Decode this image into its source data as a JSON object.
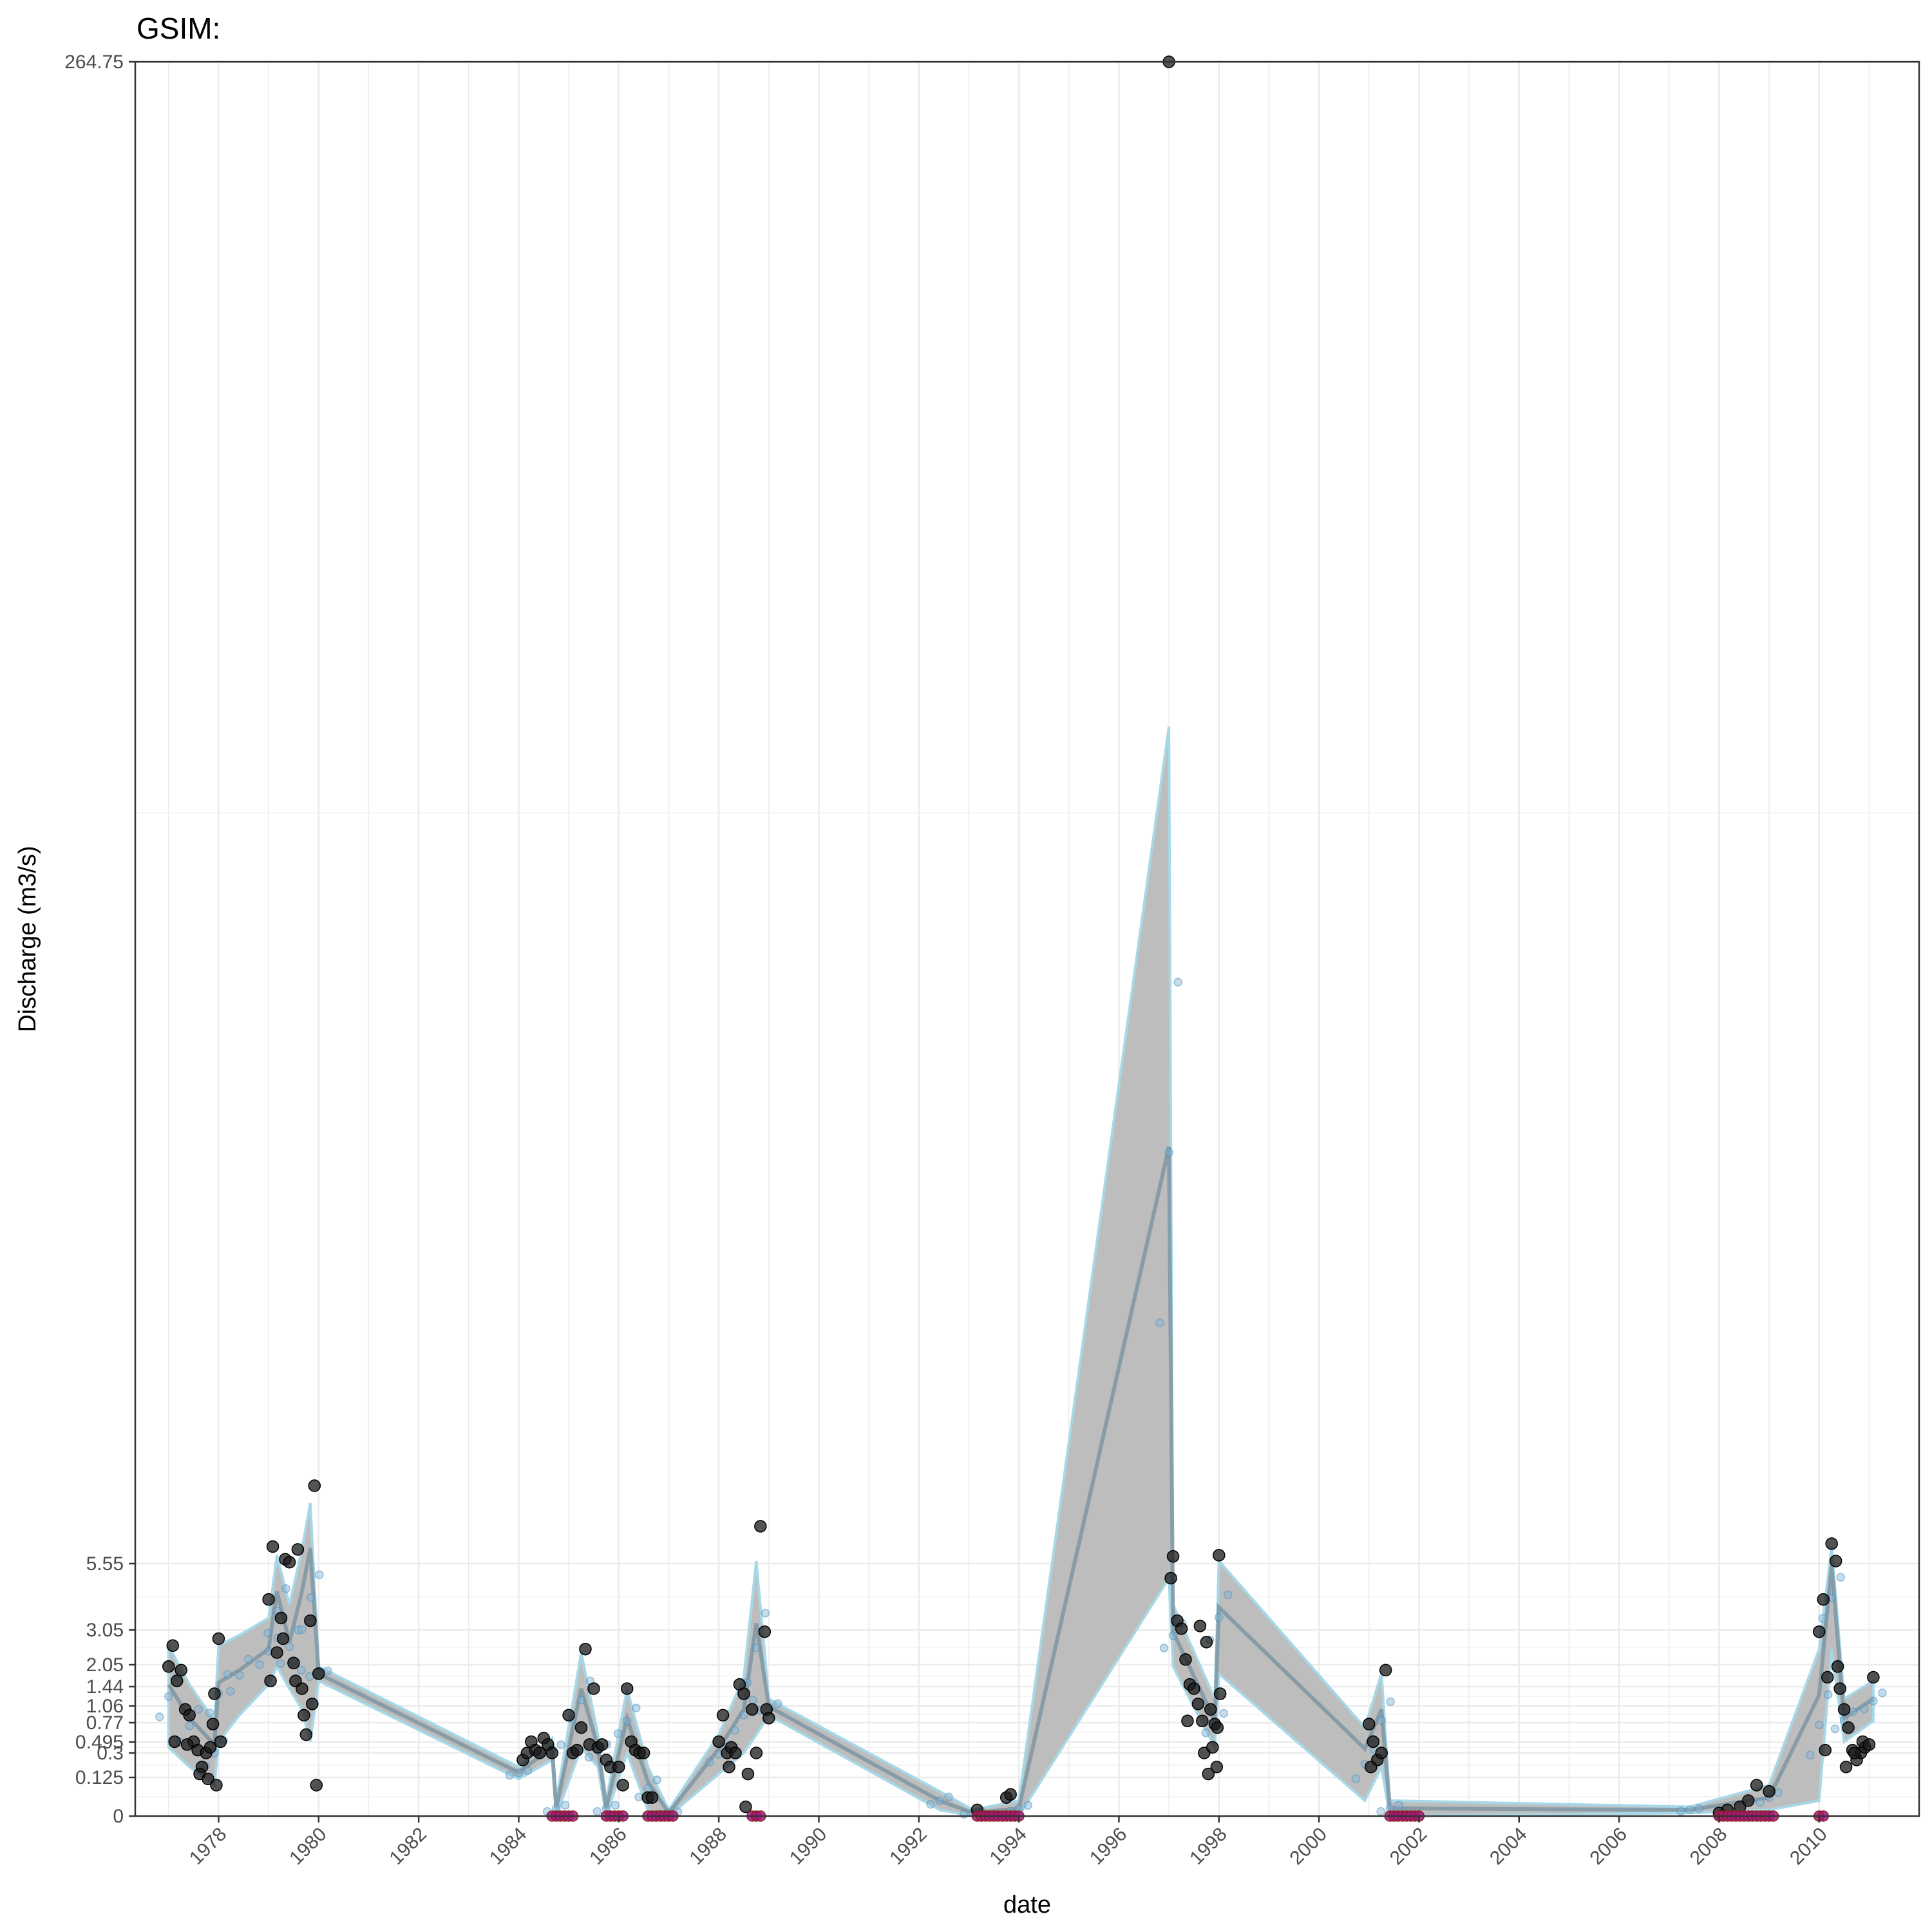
{
  "chart_data": {
    "type": "line",
    "title": "GSIM:",
    "xlabel": "date",
    "ylabel": "Discharge (m3/s)",
    "x_ticks": [
      "1978",
      "1980",
      "1982",
      "1984",
      "1986",
      "1988",
      "1990",
      "1992",
      "1994",
      "1996",
      "1998",
      "2000",
      "2002",
      "2004",
      "2006",
      "2008",
      "2010"
    ],
    "y_ticks": [
      {
        "label": "0",
        "value": 0
      },
      {
        "label": "0.125",
        "value": 0.125
      },
      {
        "label": "0.3",
        "value": 0.3
      },
      {
        "label": "0.495",
        "value": 0.495
      },
      {
        "label": "0.77",
        "value": 0.77
      },
      {
        "label": "1.06",
        "value": 1.06
      },
      {
        "label": "1.44",
        "value": 1.44
      },
      {
        "label": "2.05",
        "value": 2.05
      },
      {
        "label": "3.05",
        "value": 3.05
      },
      {
        "label": "5.55",
        "value": 5.55
      },
      {
        "label": "264.75",
        "value": 264.75
      }
    ],
    "y_scale": "transformed (square-root-like), labels at sample quantiles",
    "xlim": [
      "1976-05-01",
      "2011-12-31"
    ],
    "grid": true,
    "colors": {
      "ribbon_fill": "#bdbdbd",
      "ribbon_edge": "#a6d8e8",
      "median_line": "#7f97a3",
      "observed_points": "#1a1a1a",
      "simulated_points": "#7fb2d4",
      "zero_flow_points": "#a0197d"
    },
    "series": [
      {
        "kind": "observed",
        "points": [
          [
            "1977-01-01",
            2.0
          ],
          [
            "1977-02-01",
            2.6
          ],
          [
            "1977-03-01",
            1.6
          ],
          [
            "1977-04-01",
            1.9
          ],
          [
            "1977-05-01",
            1.0
          ],
          [
            "1977-06-01",
            0.9
          ],
          [
            "1977-07-01",
            0.5
          ],
          [
            "1977-08-01",
            0.35
          ],
          [
            "1977-09-01",
            0.2
          ],
          [
            "1977-10-01",
            0.3
          ],
          [
            "1977-11-01",
            0.4
          ],
          [
            "1977-12-01",
            1.3
          ],
          [
            "1977-02-15",
            0.5
          ],
          [
            "1977-05-15",
            0.45
          ],
          [
            "1977-08-15",
            0.15
          ],
          [
            "1977-10-15",
            0.12
          ],
          [
            "1977-11-20",
            0.75
          ],
          [
            "1977-12-15",
            0.1
          ],
          [
            "1978-01-01",
            2.8
          ],
          [
            "1978-01-15",
            0.5
          ],
          [
            "1979-01-01",
            4.2
          ],
          [
            "1979-02-01",
            8.5
          ],
          [
            "1979-03-01",
            2.4
          ],
          [
            "1979-04-01",
            3.5
          ],
          [
            "1979-05-01",
            6.3
          ],
          [
            "1979-06-01",
            5.8
          ],
          [
            "1979-07-01",
            2.1
          ],
          [
            "1979-08-01",
            8.0
          ],
          [
            "1979-09-01",
            1.4
          ],
          [
            "1979-10-01",
            0.6
          ],
          [
            "1979-11-01",
            3.4
          ],
          [
            "1979-12-01",
            19.0
          ],
          [
            "1979-01-15",
            1.6
          ],
          [
            "1979-04-15",
            2.8
          ],
          [
            "1979-07-15",
            1.6
          ],
          [
            "1979-09-15",
            0.9
          ],
          [
            "1979-11-15",
            1.1
          ],
          [
            "1979-12-15",
            0.1
          ],
          [
            "1980-01-01",
            1.8
          ],
          [
            "1984-02-01",
            0.25
          ],
          [
            "1984-03-01",
            0.3
          ],
          [
            "1984-04-01",
            0.5
          ],
          [
            "1984-05-01",
            0.35
          ],
          [
            "1984-06-01",
            0.3
          ],
          [
            "1984-07-01",
            0.55
          ],
          [
            "1984-08-01",
            0.45
          ],
          [
            "1984-09-01",
            0.3
          ],
          [
            "1985-01-01",
            0.9
          ],
          [
            "1985-02-01",
            0.3
          ],
          [
            "1985-03-01",
            0.35
          ],
          [
            "1985-04-01",
            0.7
          ],
          [
            "1985-05-01",
            2.5
          ],
          [
            "1985-06-01",
            0.45
          ],
          [
            "1985-07-01",
            1.4
          ],
          [
            "1985-08-01",
            0.4
          ],
          [
            "1985-09-01",
            0.45
          ],
          [
            "1985-10-01",
            0.25
          ],
          [
            "1985-11-01",
            0.2
          ],
          [
            "1986-01-01",
            0.2
          ],
          [
            "1986-02-01",
            0.1
          ],
          [
            "1986-03-01",
            1.4
          ],
          [
            "1986-04-01",
            0.5
          ],
          [
            "1986-05-01",
            0.35
          ],
          [
            "1986-06-01",
            0.3
          ],
          [
            "1986-07-01",
            0.3
          ],
          [
            "1986-08-01",
            0.06
          ],
          [
            "1986-09-01",
            0.06
          ],
          [
            "1988-01-01",
            0.5
          ],
          [
            "1988-02-01",
            0.9
          ],
          [
            "1988-03-01",
            0.3
          ],
          [
            "1988-04-01",
            0.4
          ],
          [
            "1988-05-01",
            0.3
          ],
          [
            "1988-06-01",
            1.5
          ],
          [
            "1988-07-01",
            1.3
          ],
          [
            "1988-08-01",
            0.15
          ],
          [
            "1988-09-01",
            1.0
          ],
          [
            "1988-10-01",
            0.3
          ],
          [
            "1988-11-01",
            12.0
          ],
          [
            "1988-12-01",
            3.0
          ],
          [
            "1988-12-15",
            1.0
          ],
          [
            "1989-01-01",
            0.85
          ],
          [
            "1988-03-15",
            0.2
          ],
          [
            "1988-07-15",
            0.03
          ],
          [
            "1993-03-01",
            0.02
          ],
          [
            "1993-10-01",
            0.06
          ],
          [
            "1993-11-01",
            0.07
          ],
          [
            "1997-01-01",
            264.75
          ],
          [
            "1997-02-01",
            6.8
          ],
          [
            "1997-01-15",
            5.0
          ],
          [
            "1997-03-01",
            3.4
          ],
          [
            "1997-04-01",
            3.1
          ],
          [
            "1997-05-01",
            2.2
          ],
          [
            "1997-06-01",
            1.5
          ],
          [
            "1997-07-01",
            1.4
          ],
          [
            "1997-08-01",
            1.1
          ],
          [
            "1997-09-01",
            0.8
          ],
          [
            "1997-10-01",
            2.7
          ],
          [
            "1997-11-01",
            1.0
          ],
          [
            "1997-12-01",
            0.75
          ],
          [
            "1997-12-15",
            0.2
          ],
          [
            "1998-01-01",
            7.0
          ],
          [
            "1997-09-15",
            0.3
          ],
          [
            "1997-11-15",
            0.4
          ],
          [
            "1997-12-20",
            0.7
          ],
          [
            "1997-10-15",
            0.15
          ],
          [
            "1998-01-10",
            1.3
          ],
          [
            "1997-05-15",
            0.8
          ],
          [
            "1997-08-15",
            3.2
          ],
          [
            "2001-01-01",
            0.75
          ],
          [
            "2001-02-01",
            0.5
          ],
          [
            "2001-03-01",
            0.25
          ],
          [
            "2001-04-01",
            0.3
          ],
          [
            "2001-05-01",
            1.9
          ],
          [
            "2001-01-15",
            0.2
          ],
          [
            "2008-01-01",
            0.01
          ],
          [
            "2008-03-01",
            0.02
          ],
          [
            "2008-06-01",
            0.03
          ],
          [
            "2008-08-01",
            0.05
          ],
          [
            "2008-10-01",
            0.1
          ],
          [
            "2009-01-01",
            0.08
          ],
          [
            "2010-01-01",
            3.0
          ],
          [
            "2010-02-01",
            4.2
          ],
          [
            "2010-03-01",
            1.7
          ],
          [
            "2010-04-01",
            9.0
          ],
          [
            "2010-05-01",
            6.0
          ],
          [
            "2010-06-01",
            1.4
          ],
          [
            "2010-07-01",
            1.0
          ],
          [
            "2010-08-01",
            0.7
          ],
          [
            "2010-09-01",
            0.35
          ],
          [
            "2010-10-01",
            0.25
          ],
          [
            "2010-11-01",
            0.3
          ],
          [
            "2010-12-01",
            0.4
          ],
          [
            "2010-02-15",
            0.35
          ],
          [
            "2010-05-15",
            2.0
          ],
          [
            "2010-07-15",
            0.2
          ],
          [
            "2010-09-15",
            0.3
          ],
          [
            "2010-11-15",
            0.5
          ],
          [
            "2011-01-01",
            0.45
          ],
          [
            "2011-02-01",
            1.7
          ]
        ]
      }
    ]
  }
}
